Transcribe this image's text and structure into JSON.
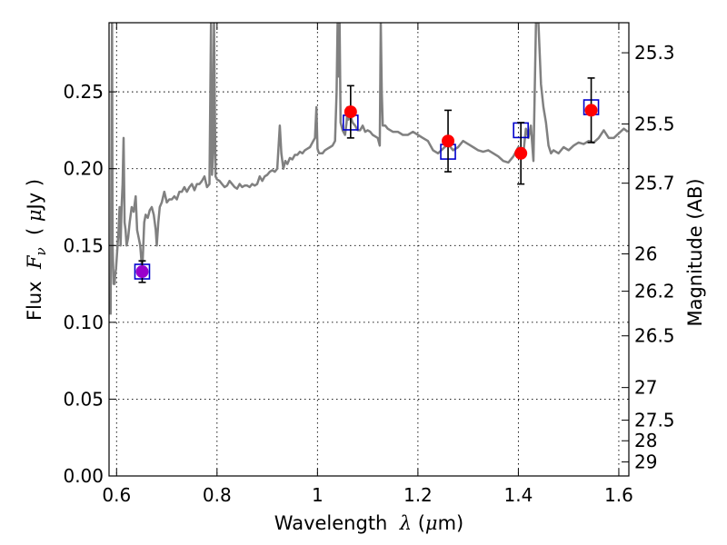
{
  "chart_data": {
    "type": "scatter",
    "title": "",
    "xlabel": {
      "prefix": "Wavelength  ",
      "symbol": "λ",
      "unit_open": " (",
      "unit_symbol": "μ",
      "unit_rest": "m)"
    },
    "ylabel": {
      "prefix": "Flux  ",
      "symbol": "F",
      "subscript": "ν",
      "unit_open": "  ( ",
      "unit_symbol": "μ",
      "unit_rest": "Jy )"
    },
    "y2label": "Magnitude (AB)",
    "xlim": [
      0.585,
      1.62
    ],
    "ylim": [
      0.0,
      0.295
    ],
    "grid": true,
    "legend": "none",
    "xticks": [
      {
        "value": 0.6,
        "label": "0.6"
      },
      {
        "value": 0.8,
        "label": "0.8"
      },
      {
        "value": 1.0,
        "label": "1"
      },
      {
        "value": 1.2,
        "label": "1.2"
      },
      {
        "value": 1.4,
        "label": "1.4"
      },
      {
        "value": 1.6,
        "label": "1.6"
      }
    ],
    "yticks": [
      {
        "value": 0.0,
        "label": "0.00"
      },
      {
        "value": 0.05,
        "label": "0.05"
      },
      {
        "value": 0.1,
        "label": "0.10"
      },
      {
        "value": 0.15,
        "label": "0.15"
      },
      {
        "value": 0.2,
        "label": "0.20"
      },
      {
        "value": 0.25,
        "label": "0.25"
      }
    ],
    "y2ticks": [
      {
        "value": 25.3,
        "label": "25.3"
      },
      {
        "value": 25.5,
        "label": "25.5"
      },
      {
        "value": 25.7,
        "label": "25.7"
      },
      {
        "value": 26.0,
        "label": "26"
      },
      {
        "value": 26.2,
        "label": "26.2"
      },
      {
        "value": 26.5,
        "label": "26.5"
      },
      {
        "value": 27.0,
        "label": "27"
      },
      {
        "value": 27.5,
        "label": "27.5"
      },
      {
        "value": 28.0,
        "label": "28"
      },
      {
        "value": 29.0,
        "label": "29"
      }
    ],
    "colors": {
      "spectrum": "#808080",
      "observed": "#ff0000",
      "model": "#0000cc",
      "overlap": "#9900cc",
      "errorbar": "#000000",
      "grid": "#000000"
    },
    "series": [
      {
        "kind": "spectrum",
        "x": [
          0.588,
          0.591,
          0.592,
          0.594,
          0.596,
          0.597,
          0.599,
          0.601,
          0.604,
          0.606,
          0.608,
          0.61,
          0.612,
          0.614,
          0.616,
          0.618,
          0.62,
          0.623,
          0.626,
          0.63,
          0.634,
          0.638,
          0.641,
          0.644,
          0.647,
          0.65,
          0.652,
          0.655,
          0.658,
          0.662,
          0.666,
          0.67,
          0.674,
          0.678,
          0.68,
          0.683,
          0.686,
          0.69,
          0.695,
          0.7,
          0.705,
          0.71,
          0.715,
          0.72,
          0.725,
          0.73,
          0.735,
          0.74,
          0.745,
          0.75,
          0.755,
          0.76,
          0.765,
          0.77,
          0.775,
          0.78,
          0.785,
          0.788,
          0.79,
          0.792,
          0.794,
          0.797,
          0.8,
          0.805,
          0.81,
          0.815,
          0.82,
          0.825,
          0.83,
          0.835,
          0.84,
          0.845,
          0.85,
          0.855,
          0.86,
          0.865,
          0.87,
          0.875,
          0.88,
          0.885,
          0.89,
          0.895,
          0.9,
          0.905,
          0.91,
          0.915,
          0.92,
          0.925,
          0.928,
          0.932,
          0.936,
          0.94,
          0.945,
          0.95,
          0.955,
          0.96,
          0.965,
          0.97,
          0.975,
          0.98,
          0.985,
          0.99,
          0.995,
          0.998,
          1.0,
          1.003,
          1.006,
          1.01,
          1.015,
          1.02,
          1.025,
          1.03,
          1.035,
          1.038,
          1.04,
          1.042,
          1.044,
          1.046,
          1.05,
          1.055,
          1.058,
          1.06,
          1.062,
          1.065,
          1.068,
          1.07,
          1.075,
          1.08,
          1.085,
          1.09,
          1.095,
          1.1,
          1.105,
          1.11,
          1.115,
          1.12,
          1.124,
          1.126,
          1.128,
          1.13,
          1.135,
          1.14,
          1.15,
          1.16,
          1.17,
          1.18,
          1.19,
          1.2,
          1.21,
          1.22,
          1.23,
          1.24,
          1.25,
          1.26,
          1.27,
          1.28,
          1.29,
          1.3,
          1.31,
          1.32,
          1.33,
          1.34,
          1.35,
          1.36,
          1.37,
          1.38,
          1.39,
          1.4,
          1.41,
          1.415,
          1.42,
          1.425,
          1.43,
          1.435,
          1.44,
          1.445,
          1.45,
          1.455,
          1.46,
          1.465,
          1.47,
          1.48,
          1.49,
          1.5,
          1.51,
          1.52,
          1.53,
          1.54,
          1.55,
          1.56,
          1.57,
          1.58,
          1.59,
          1.6,
          1.61,
          1.618
        ],
        "y": [
          0.105,
          0.295,
          0.15,
          0.125,
          0.125,
          0.13,
          0.135,
          0.145,
          0.16,
          0.175,
          0.15,
          0.175,
          0.19,
          0.22,
          0.165,
          0.16,
          0.15,
          0.155,
          0.165,
          0.175,
          0.172,
          0.182,
          0.16,
          0.155,
          0.15,
          0.138,
          0.14,
          0.165,
          0.17,
          0.168,
          0.173,
          0.175,
          0.17,
          0.16,
          0.15,
          0.165,
          0.175,
          0.178,
          0.185,
          0.178,
          0.18,
          0.18,
          0.182,
          0.18,
          0.185,
          0.185,
          0.188,
          0.185,
          0.188,
          0.19,
          0.186,
          0.19,
          0.19,
          0.192,
          0.195,
          0.188,
          0.19,
          0.295,
          0.196,
          0.21,
          0.295,
          0.195,
          0.193,
          0.192,
          0.19,
          0.188,
          0.189,
          0.192,
          0.19,
          0.188,
          0.187,
          0.19,
          0.188,
          0.189,
          0.189,
          0.188,
          0.19,
          0.189,
          0.19,
          0.195,
          0.192,
          0.195,
          0.196,
          0.198,
          0.199,
          0.198,
          0.2,
          0.228,
          0.21,
          0.2,
          0.205,
          0.203,
          0.207,
          0.206,
          0.209,
          0.209,
          0.211,
          0.21,
          0.212,
          0.213,
          0.214,
          0.217,
          0.22,
          0.24,
          0.213,
          0.21,
          0.21,
          0.21,
          0.212,
          0.213,
          0.214,
          0.215,
          0.218,
          0.25,
          0.295,
          0.26,
          0.295,
          0.23,
          0.225,
          0.222,
          0.23,
          0.24,
          0.232,
          0.236,
          0.232,
          0.23,
          0.228,
          0.225,
          0.225,
          0.228,
          0.224,
          0.225,
          0.224,
          0.222,
          0.221,
          0.22,
          0.215,
          0.295,
          0.25,
          0.228,
          0.228,
          0.226,
          0.224,
          0.224,
          0.222,
          0.222,
          0.224,
          0.222,
          0.22,
          0.218,
          0.212,
          0.21,
          0.213,
          0.216,
          0.212,
          0.214,
          0.218,
          0.216,
          0.214,
          0.212,
          0.211,
          0.212,
          0.21,
          0.208,
          0.205,
          0.204,
          0.208,
          0.214,
          0.21,
          0.226,
          0.22,
          0.228,
          0.205,
          0.295,
          0.295,
          0.255,
          0.24,
          0.23,
          0.215,
          0.21,
          0.212,
          0.21,
          0.214,
          0.212,
          0.215,
          0.217,
          0.216,
          0.218,
          0.217,
          0.22,
          0.225,
          0.22,
          0.22,
          0.223,
          0.226,
          0.224
        ]
      },
      {
        "kind": "model",
        "name": "",
        "x": [
          0.651,
          1.066,
          1.26,
          1.405,
          1.545
        ],
        "y": [
          0.133,
          0.23,
          0.211,
          0.225,
          0.24
        ]
      },
      {
        "kind": "observed",
        "name": "",
        "x": [
          0.651,
          1.066,
          1.26,
          1.405,
          1.545
        ],
        "y": [
          0.133,
          0.237,
          0.218,
          0.21,
          0.238
        ],
        "yerr": [
          0.007,
          0.017,
          0.02,
          0.02,
          0.021
        ]
      }
    ]
  }
}
